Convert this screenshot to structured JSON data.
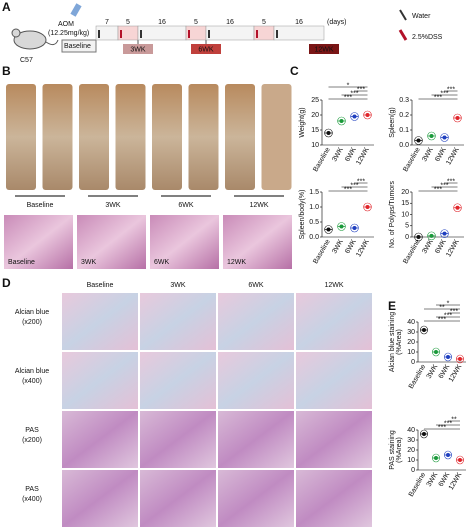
{
  "panel_a": {
    "label": "A",
    "agent": "AOM",
    "dose": "(12.25mg/kg)",
    "strain": "C57",
    "baseline": "Baseline",
    "durations": [
      7,
      5,
      16,
      5,
      16,
      5,
      16
    ],
    "stages": [
      "3WK",
      "6WK",
      "12WK"
    ],
    "unit": "(days)",
    "legend": [
      "Water",
      "2.5%DSS"
    ]
  },
  "panel_b": {
    "label": "B",
    "groups": [
      "Baseline",
      "3WK",
      "6WK",
      "12WK"
    ],
    "histology_labels": [
      "Baseline",
      "3WK",
      "6WK",
      "12WK"
    ]
  },
  "panel_c": {
    "label": "C",
    "charts": [
      {
        "type": "dot",
        "ylabel": "Weight(g)",
        "categories": [
          "Baseline",
          "3WK",
          "6WK",
          "12WK"
        ],
        "colors": [
          "#111111",
          "#1a9a3a",
          "#1f3fbf",
          "#e0242a"
        ],
        "values": [
          14,
          18,
          19.5,
          20
        ],
        "ylim": [
          10,
          25
        ],
        "yticks": [
          10,
          15,
          20,
          25
        ],
        "significance": [
          "***",
          "***",
          "***",
          "*"
        ]
      },
      {
        "type": "dot",
        "ylabel": "Spleen(g)",
        "categories": [
          "Baseline",
          "3WK",
          "6WK",
          "12WK"
        ],
        "colors": [
          "#111111",
          "#1a9a3a",
          "#1f3fbf",
          "#e0242a"
        ],
        "values": [
          0.03,
          0.06,
          0.05,
          0.18
        ],
        "ylim": [
          0,
          0.3
        ],
        "yticks": [
          {
            "value": 0,
            "label": "0.0"
          },
          0.1,
          0.2,
          0.3
        ],
        "significance": [
          "***",
          "***",
          "***"
        ]
      },
      {
        "type": "dot",
        "ylabel": "Spleen/body(%)",
        "categories": [
          "Baseline",
          "3WK",
          "6WK",
          "12WK"
        ],
        "colors": [
          "#111111",
          "#1a9a3a",
          "#1f3fbf",
          "#e0242a"
        ],
        "values": [
          0.25,
          0.35,
          0.3,
          1.0
        ],
        "ylim": [
          0,
          1.5
        ],
        "yticks": [
          {
            "value": 0,
            "label": "0.0"
          },
          0.5,
          {
            "value": 1,
            "label": "1.0"
          },
          1.5
        ],
        "significance": [
          "***",
          "***",
          "***"
        ]
      },
      {
        "type": "dot",
        "ylabel": "No. of Polyps/Tumors",
        "categories": [
          "Baseline",
          "3WK",
          "6WK",
          "12WK"
        ],
        "colors": [
          "#111111",
          "#1a9a3a",
          "#1f3fbf",
          "#e0242a"
        ],
        "values": [
          0,
          0.5,
          1.5,
          13
        ],
        "ylim": [
          0,
          20
        ],
        "yticks": [
          0,
          5,
          10,
          15,
          20
        ],
        "significance": [
          "***",
          "***",
          "***"
        ]
      }
    ]
  },
  "panel_d": {
    "label": "D",
    "columns": [
      "Baseline",
      "3WK",
      "6WK",
      "12WK"
    ],
    "rows": [
      [
        "Alcian blue",
        "(x200)"
      ],
      [
        "Alcian blue",
        "(x400)"
      ],
      [
        "PAS",
        "(x200)"
      ],
      [
        "PAS",
        "(x400)"
      ]
    ]
  },
  "panel_e": {
    "label": "E",
    "charts": [
      {
        "type": "dot",
        "ylabel": [
          "Alcian blue staining",
          "(%Area)"
        ],
        "categories": [
          "Baseline",
          "3WK",
          "6WK",
          "12WK"
        ],
        "colors": [
          "#111111",
          "#1a9a3a",
          "#1f3fbf",
          "#e0242a"
        ],
        "values": [
          32,
          10,
          5,
          3
        ],
        "ylim": [
          0,
          40
        ],
        "yticks": [
          0,
          10,
          20,
          30,
          40
        ],
        "significance": [
          "***",
          "***",
          "***",
          "**",
          "*"
        ]
      },
      {
        "type": "dot",
        "ylabel": [
          "PAS staining",
          "(%Area)"
        ],
        "categories": [
          "Baseline",
          "3WK",
          "6WK",
          "12WK"
        ],
        "colors": [
          "#111111",
          "#1a9a3a",
          "#1f3fbf",
          "#e0242a"
        ],
        "values": [
          36,
          12,
          15,
          10
        ],
        "ylim": [
          0,
          40
        ],
        "yticks": [
          0,
          10,
          20,
          30,
          40
        ],
        "significance": [
          "***",
          "***",
          "**"
        ]
      }
    ]
  }
}
